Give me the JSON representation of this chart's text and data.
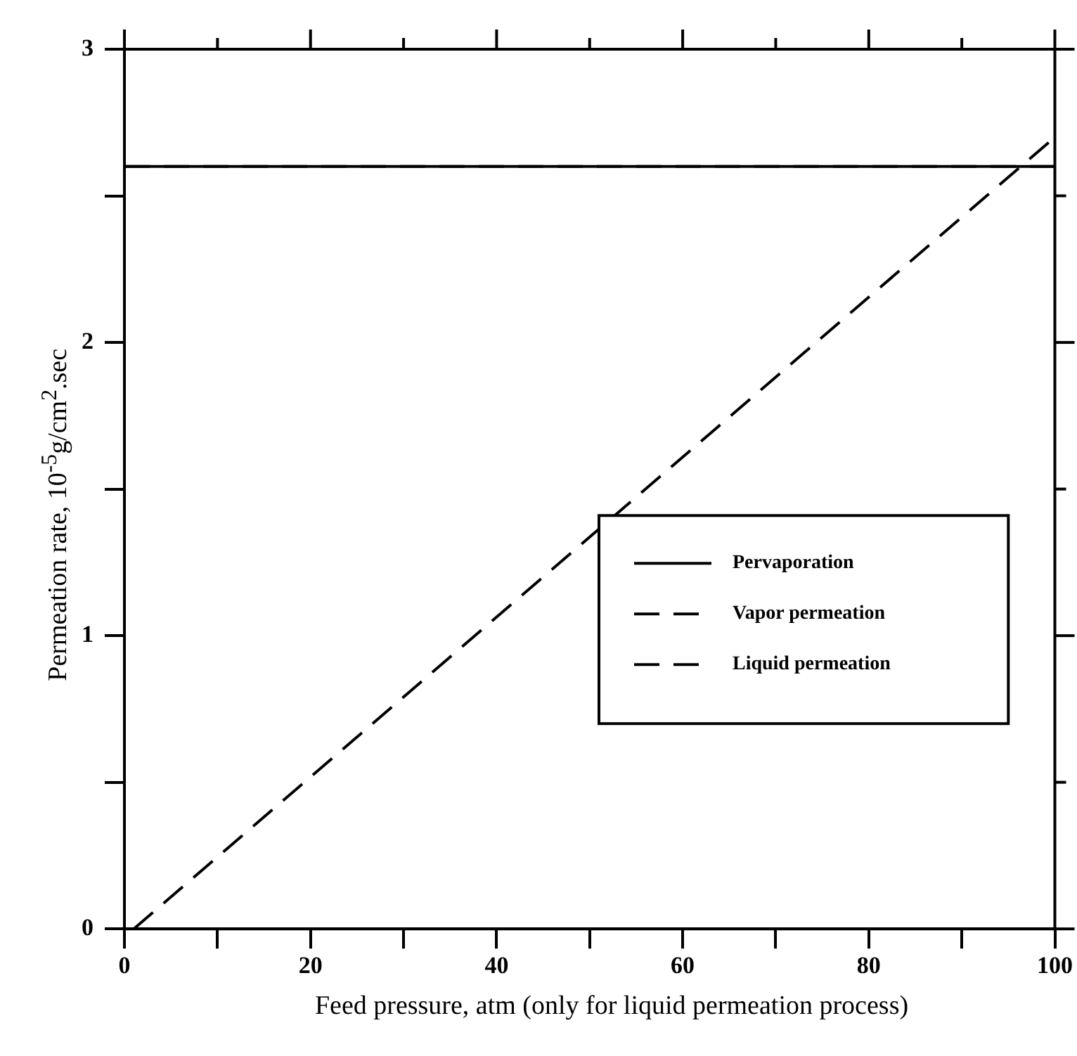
{
  "chart_data": {
    "type": "line",
    "xlabel": "Feed pressure, atm (only for liquid permeation process)",
    "ylabel": "Permeation rate, 10$^{-5}$g/cm$^{2}$.sec",
    "xlim": [
      0,
      100
    ],
    "xticks": [
      0,
      {
        "value": 10,
        "label": null
      },
      20,
      {
        "value": 30,
        "label": null
      },
      40,
      {
        "value": 50,
        "label": null
      },
      60,
      {
        "value": 70,
        "label": null
      },
      80,
      {
        "value": 90,
        "label": null
      },
      100
    ],
    "ylim": [
      0,
      3
    ],
    "yticks": [
      0,
      {
        "value": 0.5,
        "label": null
      },
      1,
      {
        "value": 1.5,
        "label": null
      },
      2,
      {
        "value": 2.5,
        "label": null
      },
      3
    ],
    "grid": false,
    "legend": "right",
    "marker": "none",
    "series": [
      {
        "name": "Pervaporation",
        "color": "#000000",
        "line_style": "solid",
        "x": [
          0,
          100
        ],
        "values": [
          2.6,
          2.6
        ]
      },
      {
        "name": "Vapor permeation",
        "color": "#000000",
        "line_style": "dashed",
        "x": [
          0,
          100
        ],
        "values": [
          2.6,
          2.6
        ]
      },
      {
        "name": "Liquid permeation",
        "color": "#000000",
        "line_style": "dashed",
        "x": [
          1,
          100
        ],
        "values": [
          0,
          2.7
        ]
      }
    ]
  }
}
